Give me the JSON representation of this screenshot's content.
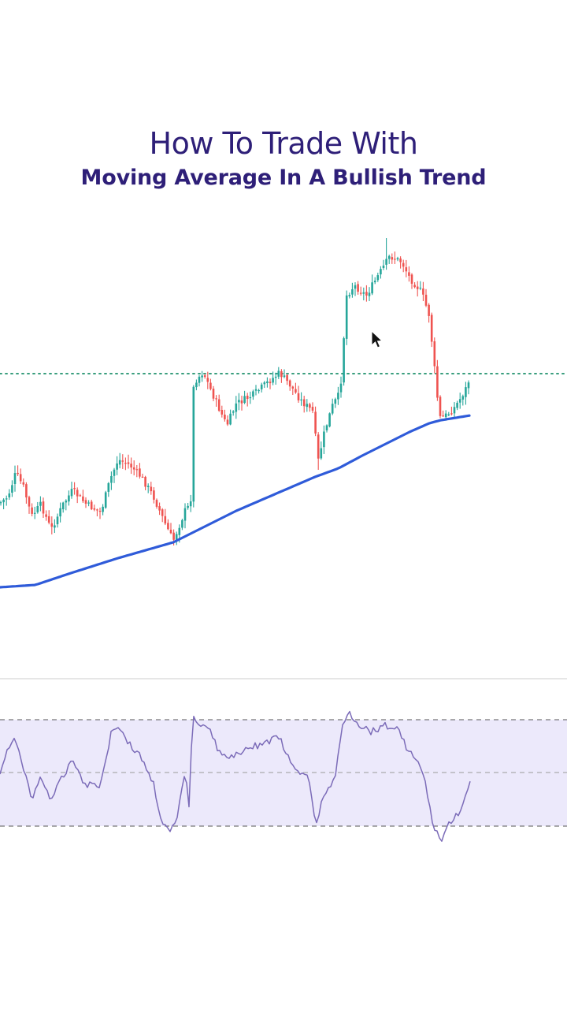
{
  "title": {
    "line1": "How To Trade With",
    "line2": "Moving Average In A Bullish Trend"
  },
  "chart_data": [
    {
      "type": "candlestick",
      "title": "",
      "xlabel": "",
      "ylabel": "",
      "grid": false,
      "colors": {
        "up": "#26a69a",
        "down": "#ef5350",
        "ma": "#2f5bd9",
        "level": "#3a9e7e"
      },
      "moving_average_anchors": [
        [
          0,
          745
        ],
        [
          45,
          742
        ],
        [
          90,
          727
        ],
        [
          150,
          708
        ],
        [
          220,
          688
        ],
        [
          300,
          648
        ],
        [
          400,
          605
        ],
        [
          430,
          594
        ],
        [
          460,
          578
        ],
        [
          520,
          548
        ],
        [
          545,
          537
        ],
        [
          560,
          533
        ],
        [
          597,
          527
        ]
      ],
      "horizontal_level": 474,
      "price_anchors": [
        [
          0,
          638
        ],
        [
          10,
          630
        ],
        [
          20,
          600
        ],
        [
          30,
          618
        ],
        [
          40,
          655
        ],
        [
          52,
          640
        ],
        [
          65,
          672
        ],
        [
          80,
          640
        ],
        [
          92,
          622
        ],
        [
          110,
          640
        ],
        [
          128,
          650
        ],
        [
          140,
          608
        ],
        [
          150,
          583
        ],
        [
          165,
          590
        ],
        [
          180,
          606
        ],
        [
          195,
          630
        ],
        [
          210,
          665
        ],
        [
          220,
          686
        ],
        [
          235,
          648
        ],
        [
          242,
          640
        ],
        [
          246,
          485
        ],
        [
          258,
          472
        ],
        [
          270,
          500
        ],
        [
          288,
          540
        ],
        [
          300,
          512
        ],
        [
          320,
          502
        ],
        [
          340,
          485
        ],
        [
          355,
          473
        ],
        [
          368,
          488
        ],
        [
          382,
          508
        ],
        [
          397,
          522
        ],
        [
          404,
          585
        ],
        [
          412,
          548
        ],
        [
          422,
          515
        ],
        [
          432,
          498
        ],
        [
          440,
          375
        ],
        [
          450,
          362
        ],
        [
          465,
          375
        ],
        [
          480,
          350
        ],
        [
          495,
          325
        ],
        [
          510,
          332
        ],
        [
          520,
          352
        ],
        [
          535,
          370
        ],
        [
          545,
          400
        ],
        [
          552,
          470
        ],
        [
          558,
          530
        ],
        [
          565,
          528
        ],
        [
          575,
          520
        ],
        [
          585,
          505
        ],
        [
          592,
          492
        ],
        [
          597,
          478
        ]
      ],
      "price_spikes": [
        [
          244,
          432
        ],
        [
          492,
          302
        ],
        [
          597,
          447
        ],
        [
          404,
          596
        ],
        [
          220,
          692
        ]
      ]
    },
    {
      "type": "line",
      "title": "",
      "xlabel": "",
      "ylabel": "",
      "grid": false,
      "colors": {
        "line": "#7b6bb8",
        "band": "#ece9fb",
        "levels": "#555555"
      },
      "upper_level": 913,
      "middle_level": 980,
      "lower_level": 1048,
      "oscillator_anchors": [
        [
          0,
          982
        ],
        [
          8,
          955
        ],
        [
          20,
          938
        ],
        [
          28,
          965
        ],
        [
          40,
          1015
        ],
        [
          52,
          985
        ],
        [
          65,
          1015
        ],
        [
          80,
          985
        ],
        [
          92,
          962
        ],
        [
          108,
          995
        ],
        [
          128,
          995
        ],
        [
          142,
          925
        ],
        [
          150,
          920
        ],
        [
          165,
          945
        ],
        [
          180,
          962
        ],
        [
          195,
          995
        ],
        [
          205,
          1040
        ],
        [
          215,
          1058
        ],
        [
          225,
          1040
        ],
        [
          235,
          978
        ],
        [
          240,
          1020
        ],
        [
          245,
          908
        ],
        [
          255,
          918
        ],
        [
          265,
          920
        ],
        [
          275,
          948
        ],
        [
          290,
          965
        ],
        [
          310,
          950
        ],
        [
          330,
          945
        ],
        [
          355,
          935
        ],
        [
          365,
          960
        ],
        [
          375,
          980
        ],
        [
          390,
          980
        ],
        [
          402,
          1048
        ],
        [
          410,
          1010
        ],
        [
          425,
          990
        ],
        [
          435,
          920
        ],
        [
          442,
          902
        ],
        [
          455,
          918
        ],
        [
          470,
          928
        ],
        [
          490,
          920
        ],
        [
          505,
          925
        ],
        [
          520,
          955
        ],
        [
          530,
          965
        ],
        [
          540,
          992
        ],
        [
          548,
          1040
        ],
        [
          560,
          1068
        ],
        [
          570,
          1045
        ],
        [
          580,
          1035
        ],
        [
          590,
          1015
        ],
        [
          597,
          995
        ]
      ]
    }
  ]
}
